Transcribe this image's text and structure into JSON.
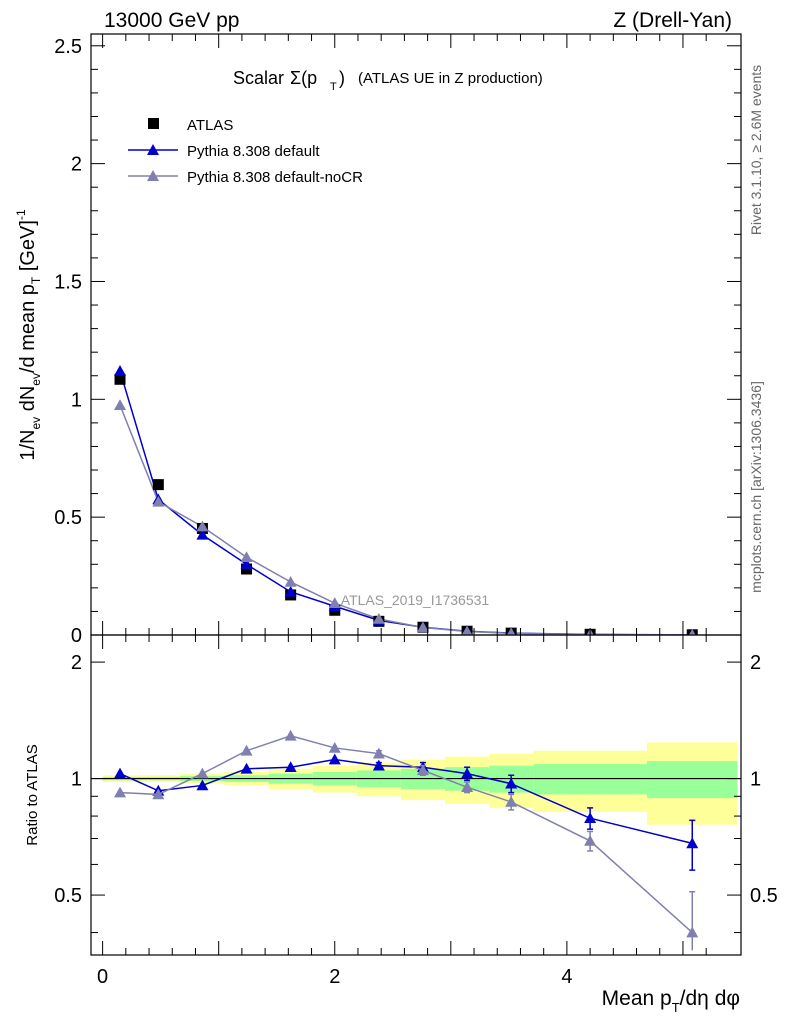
{
  "header": {
    "left": "13000 GeV pp",
    "right": "Z (Drell-Yan)"
  },
  "side_text": {
    "rivet": "Rivet 3.1.10, ≥ 2.6M events",
    "mcplots": "mcplots.cern.ch [arXiv:1306.3436]"
  },
  "plot_title": "Scalar Σ(p_T) (ATLAS UE in Z production)",
  "watermark": "ATLAS_2019_I1736531",
  "ylabel_main": "1/N_ev dN_ev/d mean p_T [GeV]^-1",
  "ylabel_ratio": "Ratio to ATLAS",
  "xlabel": "Mean p_T/dη dφ",
  "legend": {
    "data": "ATLAS",
    "mc1": "Pythia 8.308 default",
    "mc2": "Pythia 8.308 default-noCR"
  },
  "colors": {
    "data": "#000000",
    "mc1": "#0000cc",
    "mc2": "#8080b0",
    "band_inner": "#99ff99",
    "band_outer": "#ffff99"
  },
  "chart_data": [
    {
      "type": "scatter",
      "panel": "main",
      "title": "Scalar Σ(p_T) (ATLAS UE in Z production)",
      "xlabel": "",
      "ylabel": "1/N_ev dN_ev/d mean p_T [GeV]^-1",
      "xlim": [
        -0.1,
        5.5
      ],
      "ylim": [
        0,
        2.55
      ],
      "yticks": [
        0,
        0.5,
        1,
        1.5,
        2,
        2.5
      ],
      "legend_position": "top-left",
      "x": [
        0.15,
        0.48,
        0.86,
        1.24,
        1.62,
        2.0,
        2.38,
        2.76,
        3.14,
        3.52,
        4.2,
        5.08
      ],
      "series": [
        {
          "name": "ATLAS",
          "marker": "square",
          "values": [
            1.085,
            0.638,
            0.452,
            0.28,
            0.17,
            0.105,
            0.058,
            0.033,
            0.016,
            0.008,
            0.003,
            0.001
          ]
        },
        {
          "name": "Pythia 8.308 default",
          "marker": "triangle",
          "values": [
            1.12,
            0.575,
            0.425,
            0.3,
            0.183,
            0.122,
            0.062,
            0.033,
            0.016,
            0.008,
            0.0024,
            0.0007
          ]
        },
        {
          "name": "Pythia 8.308 default-noCR",
          "marker": "triangle",
          "values": [
            0.975,
            0.565,
            0.46,
            0.33,
            0.225,
            0.135,
            0.068,
            0.032,
            0.015,
            0.007,
            0.002,
            0.0004
          ]
        }
      ]
    },
    {
      "type": "scatter",
      "panel": "ratio",
      "xlabel": "Mean p_T/dη dφ",
      "ylabel": "Ratio to ATLAS",
      "xlim": [
        -0.1,
        5.5
      ],
      "ylim": [
        0.35,
        2.35
      ],
      "yticks": [
        0.5,
        1,
        2
      ],
      "xticks": [
        0,
        2,
        4
      ],
      "x": [
        0.15,
        0.48,
        0.86,
        1.24,
        1.62,
        2.0,
        2.38,
        2.76,
        3.14,
        3.52,
        4.2,
        5.08
      ],
      "bin_edges": [
        0.0,
        0.3,
        0.67,
        1.05,
        1.43,
        1.81,
        2.19,
        2.57,
        2.95,
        3.33,
        3.71,
        4.69,
        5.47
      ],
      "band_inner_halfwidth": [
        0.01,
        0.01,
        0.015,
        0.02,
        0.03,
        0.04,
        0.05,
        0.06,
        0.07,
        0.08,
        0.09,
        0.11
      ],
      "band_outer_halfwidth": [
        0.02,
        0.02,
        0.03,
        0.04,
        0.06,
        0.08,
        0.1,
        0.12,
        0.14,
        0.16,
        0.18,
        0.24
      ],
      "series": [
        {
          "name": "Pythia 8.308 default",
          "values": [
            1.03,
            0.93,
            0.96,
            1.06,
            1.07,
            1.12,
            1.08,
            1.07,
            1.03,
            0.97,
            0.79,
            0.68
          ],
          "errors": [
            0.0,
            0.0,
            0.0,
            0.0,
            0.0,
            0.0,
            0.02,
            0.03,
            0.04,
            0.05,
            0.05,
            0.1
          ]
        },
        {
          "name": "Pythia 8.308 default-noCR",
          "values": [
            0.92,
            0.91,
            1.03,
            1.18,
            1.29,
            1.2,
            1.16,
            1.05,
            0.95,
            0.87,
            0.69,
            0.4
          ],
          "errors": [
            0.0,
            0.0,
            0.0,
            0.0,
            0.0,
            0.0,
            0.02,
            0.03,
            0.03,
            0.04,
            0.04,
            0.11
          ]
        }
      ]
    }
  ]
}
